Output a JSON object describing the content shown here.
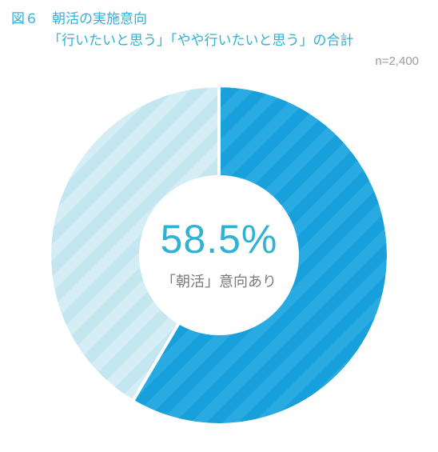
{
  "title": {
    "line1": "図６　朝活の実施意向",
    "line2": "「行いたいと思う」「やや行いたいと思う」の合計",
    "color": "#2fb1d6"
  },
  "sample": {
    "label": "n=2,400",
    "color": "#9d9d9d"
  },
  "chart": {
    "type": "donut",
    "percent_value": 58.5,
    "percent_label": "58.5%",
    "center_caption": "「朝活」意向あり",
    "percent_color": "#2fb1d6",
    "caption_color": "#7b7b7b",
    "slice_primary_color": "#29abe2",
    "slice_primary_stripe": "#17a0db",
    "slice_secondary_color": "#d5eef5",
    "slice_secondary_stripe": "#c4e6f0",
    "separator_color": "#ffffff",
    "background_color": "#ffffff",
    "outer_radius": 210,
    "inner_radius": 100,
    "stripe_width": 14,
    "stripe_angle_deg": 45
  }
}
